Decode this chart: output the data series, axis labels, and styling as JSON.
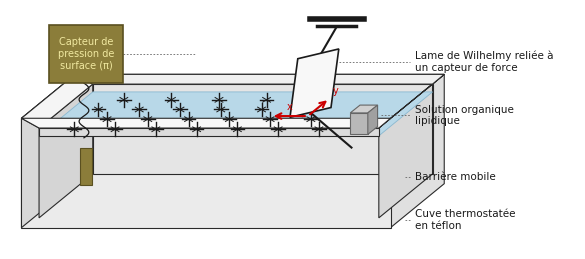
{
  "figure_width": 5.85,
  "figure_height": 2.59,
  "dpi": 100,
  "background_color": "#ffffff",
  "trough_fill_color": "#b8d8e8",
  "trough_edge_color": "#2a2a2a",
  "sensor_box_color": "#8b7d3a",
  "sensor_box_text_color": "#f0e8a0",
  "sensor_box_text": "Capteur de\npression de\nsurface (π)",
  "axis_arrow_color": "#cc0000",
  "label_wilhelmy": "Lame de Wilhelmy reliée à\nun capteur de force",
  "label_solution": "Solution organique\nlipidique",
  "label_barriere": "Barrière mobile",
  "label_cuve": "Cuve thermostatée\nen téflon",
  "label_x": "x",
  "label_y": "y",
  "font_size_labels": 7.5,
  "font_size_box": 7,
  "star_color": "#1a1a1a",
  "trough_rim_color": "#e8e8e8",
  "trough_side_color": "#d0d0d0",
  "trough_front_color": "#c8c8c8",
  "barrier_face_color": "#b8b8b8",
  "barrier_top_color": "#d8d8d8"
}
